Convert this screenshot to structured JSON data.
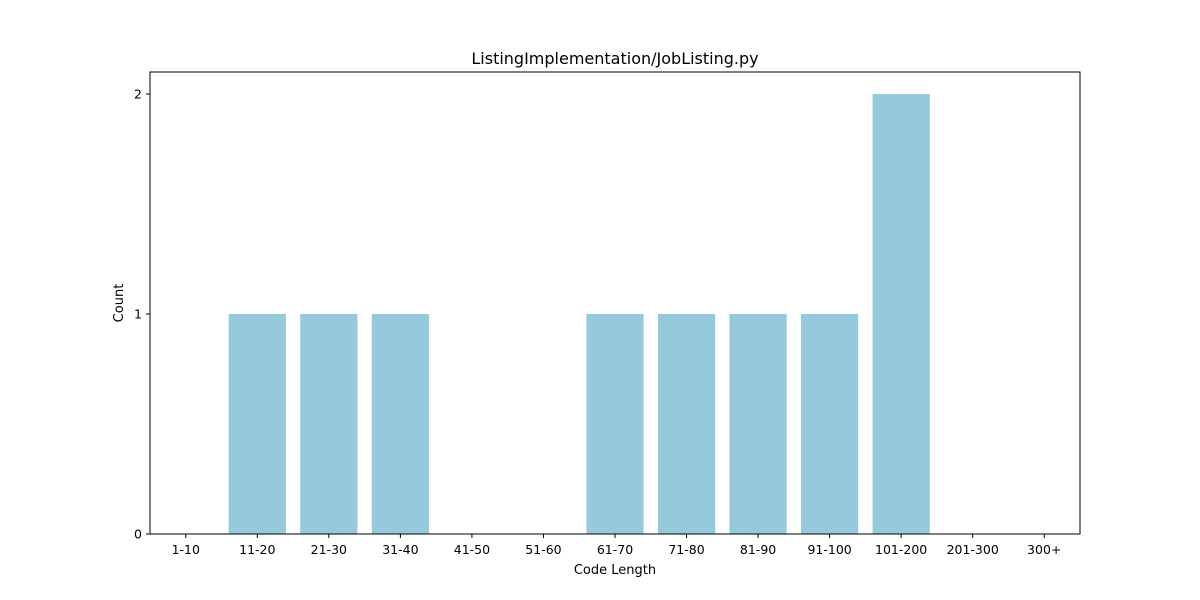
{
  "chart_data": {
    "type": "bar",
    "title": "ListingImplementation/JobListing.py",
    "xlabel": "Code Length",
    "ylabel": "Count",
    "categories": [
      "1-10",
      "11-20",
      "21-30",
      "31-40",
      "41-50",
      "51-60",
      "61-70",
      "71-80",
      "81-90",
      "91-100",
      "101-200",
      "201-300",
      "300+"
    ],
    "values": [
      0,
      1,
      1,
      1,
      0,
      0,
      1,
      1,
      1,
      1,
      2,
      0,
      0
    ],
    "ylim": [
      0,
      2.1
    ],
    "yticks": [
      "0",
      "1",
      "2"
    ],
    "grid": false,
    "bar_color": "#96c9dc"
  }
}
